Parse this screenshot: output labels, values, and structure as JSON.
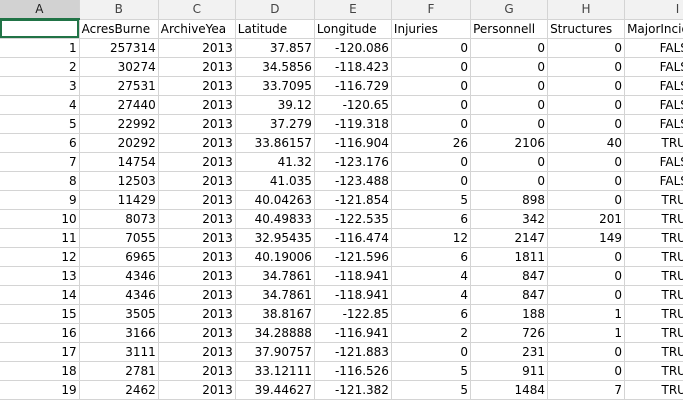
{
  "columns": [
    "A",
    "B",
    "C",
    "D",
    "E",
    "F",
    "G",
    "H",
    "I"
  ],
  "headers": [
    "",
    "AcresBurne",
    "ArchiveYea",
    "Latitude",
    "Longitude",
    "Injuries",
    "Personnell",
    "Structures",
    "MajorIncident"
  ],
  "rows": [
    {
      "n": "1",
      "cells": [
        "1",
        "257314",
        "2013",
        "37.857",
        "-120.086",
        "0",
        "0",
        "0",
        "FALSE"
      ]
    },
    {
      "n": "2",
      "cells": [
        "2",
        "30274",
        "2013",
        "34.5856",
        "-118.423",
        "0",
        "0",
        "0",
        "FALSE"
      ]
    },
    {
      "n": "3",
      "cells": [
        "3",
        "27531",
        "2013",
        "33.7095",
        "-116.729",
        "0",
        "0",
        "0",
        "FALSE"
      ]
    },
    {
      "n": "4",
      "cells": [
        "4",
        "27440",
        "2013",
        "39.12",
        "-120.65",
        "0",
        "0",
        "0",
        "FALSE"
      ]
    },
    {
      "n": "5",
      "cells": [
        "5",
        "22992",
        "2013",
        "37.279",
        "-119.318",
        "0",
        "0",
        "0",
        "FALSE"
      ]
    },
    {
      "n": "6",
      "cells": [
        "6",
        "20292",
        "2013",
        "33.86157",
        "-116.904",
        "26",
        "2106",
        "40",
        "TRUE"
      ]
    },
    {
      "n": "7",
      "cells": [
        "7",
        "14754",
        "2013",
        "41.32",
        "-123.176",
        "0",
        "0",
        "0",
        "FALSE"
      ]
    },
    {
      "n": "8",
      "cells": [
        "8",
        "12503",
        "2013",
        "41.035",
        "-123.488",
        "0",
        "0",
        "0",
        "FALSE"
      ]
    },
    {
      "n": "9",
      "cells": [
        "9",
        "11429",
        "2013",
        "40.04263",
        "-121.854",
        "5",
        "898",
        "0",
        "TRUE"
      ]
    },
    {
      "n": "10",
      "cells": [
        "10",
        "8073",
        "2013",
        "40.49833",
        "-122.535",
        "6",
        "342",
        "201",
        "TRUE"
      ]
    },
    {
      "n": "11",
      "cells": [
        "11",
        "7055",
        "2013",
        "32.95435",
        "-116.474",
        "12",
        "2147",
        "149",
        "TRUE"
      ]
    },
    {
      "n": "12",
      "cells": [
        "12",
        "6965",
        "2013",
        "40.19006",
        "-121.596",
        "6",
        "1811",
        "0",
        "TRUE"
      ]
    },
    {
      "n": "13",
      "cells": [
        "13",
        "4346",
        "2013",
        "34.7861",
        "-118.941",
        "4",
        "847",
        "0",
        "TRUE"
      ]
    },
    {
      "n": "14",
      "cells": [
        "14",
        "4346",
        "2013",
        "34.7861",
        "-118.941",
        "4",
        "847",
        "0",
        "TRUE"
      ]
    },
    {
      "n": "15",
      "cells": [
        "15",
        "3505",
        "2013",
        "38.8167",
        "-122.85",
        "6",
        "188",
        "1",
        "TRUE"
      ]
    },
    {
      "n": "16",
      "cells": [
        "16",
        "3166",
        "2013",
        "34.28888",
        "-116.941",
        "2",
        "726",
        "1",
        "TRUE"
      ]
    },
    {
      "n": "17",
      "cells": [
        "17",
        "3111",
        "2013",
        "37.90757",
        "-121.883",
        "0",
        "231",
        "0",
        "TRUE"
      ]
    },
    {
      "n": "18",
      "cells": [
        "18",
        "2781",
        "2013",
        "33.12111",
        "-116.526",
        "5",
        "911",
        "0",
        "TRUE"
      ]
    },
    {
      "n": "19",
      "cells": [
        "19",
        "2462",
        "2013",
        "39.44627",
        "-121.382",
        "5",
        "1484",
        "7",
        "TRUE"
      ]
    }
  ]
}
